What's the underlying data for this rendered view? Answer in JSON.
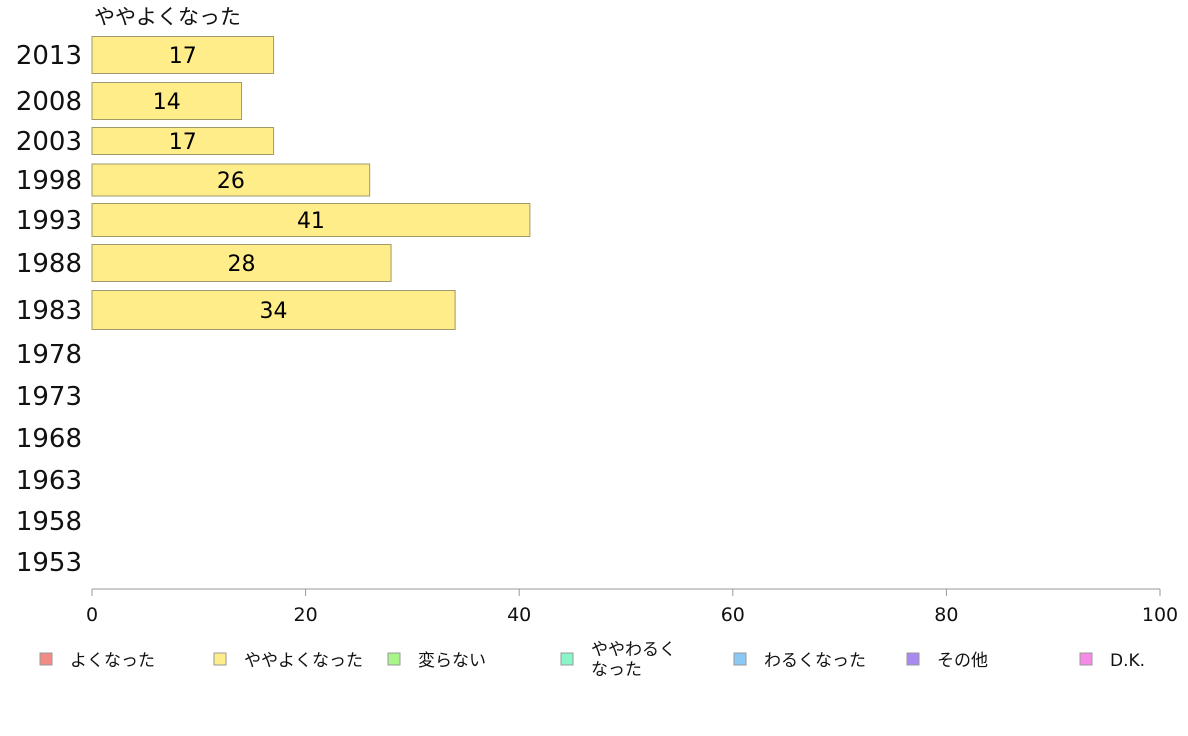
{
  "chart_data": {
    "type": "bar",
    "orientation": "horizontal",
    "title": "ややよくなった",
    "categories": [
      "2013",
      "2008",
      "2003",
      "1998",
      "1993",
      "1988",
      "1983",
      "1978",
      "1973",
      "1968",
      "1963",
      "1958",
      "1953"
    ],
    "series": [
      {
        "name": "ややよくなった",
        "values": [
          17,
          14,
          17,
          26,
          41,
          28,
          34,
          null,
          null,
          null,
          null,
          null,
          null
        ]
      }
    ],
    "xlim": [
      0,
      100
    ],
    "xticks": [
      0,
      20,
      40,
      60,
      80,
      100
    ],
    "grid": false,
    "bar_color": "#ffed8a",
    "legend": {
      "placement": "bottom",
      "items": [
        {
          "label": "よくなった",
          "color": "#f28b86"
        },
        {
          "label": "ややよくなった",
          "color": "#ffed8a"
        },
        {
          "label": "変らない",
          "color": "#a8f58a"
        },
        {
          "label": "ややわるく なった",
          "color": "#8af5c8"
        },
        {
          "label": "わるくなった",
          "color": "#8ac8f5"
        },
        {
          "label": "その他",
          "color": "#a98af0"
        },
        {
          "label": "D.K.",
          "color": "#f58ae8"
        }
      ]
    }
  }
}
